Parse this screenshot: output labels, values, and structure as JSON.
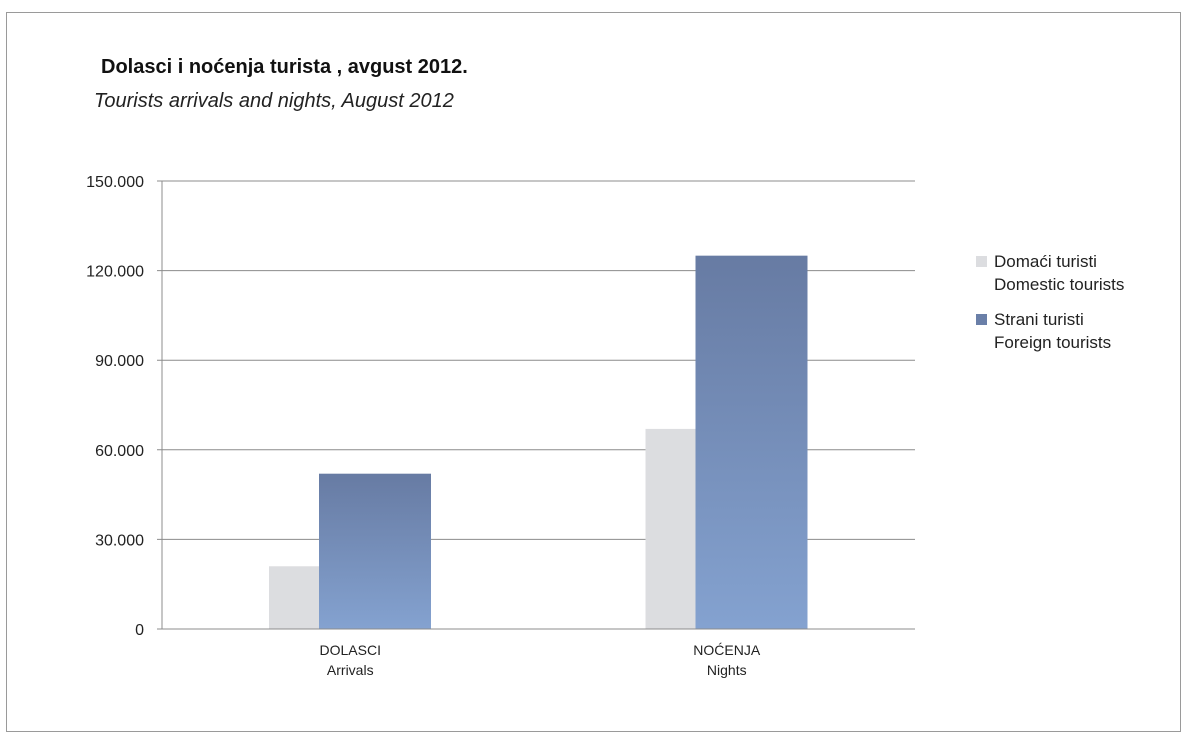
{
  "chart_data": {
    "type": "bar",
    "title": "Dolasci i noćenja turista , avgust 2012.",
    "subtitle": "Tourists arrivals and nights, August 2012",
    "categories": [
      [
        "DOLASCI",
        "Arrivals"
      ],
      [
        "NOĆENJA",
        "Nights"
      ]
    ],
    "series": [
      {
        "name": [
          "Domaći turisti",
          "Domestic tourists"
        ],
        "values": [
          21000,
          67000
        ],
        "color": "#dcdde0"
      },
      {
        "name": [
          "Strani turisti",
          "Foreign tourists"
        ],
        "values": [
          52000,
          125000
        ],
        "color": "#6a7fa8"
      }
    ],
    "ylim": [
      0,
      150000
    ],
    "yticks": [
      0,
      30000,
      60000,
      90000,
      120000,
      150000
    ],
    "ytick_labels": [
      "0",
      "30.000",
      "60.000",
      "90.000",
      "120.000",
      "150.000"
    ],
    "grid": true,
    "legend_position": "right"
  }
}
